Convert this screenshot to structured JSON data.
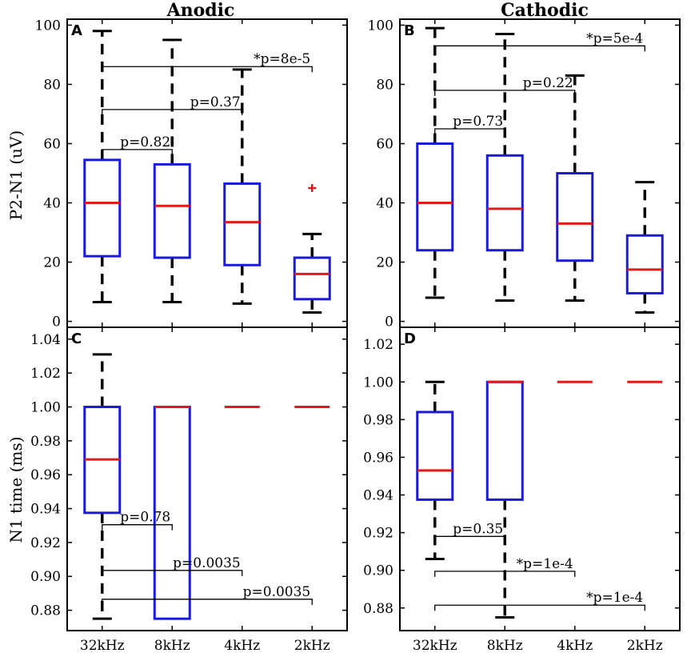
{
  "figure": {
    "col_titles": [
      "Anodic",
      "Cathodic"
    ],
    "row_ylabels": [
      "P2-N1 (uV)",
      "N1 time (ms)"
    ]
  },
  "chart_data": [
    {
      "panel": "A",
      "type": "box",
      "title": "Anodic",
      "ylabel": "P2-N1 (uV)",
      "categories": [
        "32kHz",
        "8kHz",
        "4kHz",
        "2kHz"
      ],
      "ylim": [
        -2,
        102
      ],
      "yticks": [
        0,
        20,
        40,
        60,
        80,
        100
      ],
      "ytick_labels": [
        "0",
        "20",
        "40",
        "60",
        "80",
        "100"
      ],
      "boxes": [
        {
          "lower_whisker": 6.5,
          "q1": 22,
          "median": 40,
          "q3": 54.5,
          "upper_whisker": 98,
          "outliers": []
        },
        {
          "lower_whisker": 6.5,
          "q1": 21.5,
          "median": 39,
          "q3": 53,
          "upper_whisker": 95,
          "outliers": []
        },
        {
          "lower_whisker": 6,
          "q1": 19,
          "median": 33.5,
          "q3": 46.5,
          "upper_whisker": 85,
          "outliers": []
        },
        {
          "lower_whisker": 3,
          "q1": 7.5,
          "median": 16,
          "q3": 21.5,
          "upper_whisker": 29.5,
          "outliers": [
            45
          ]
        }
      ],
      "comparisons": [
        {
          "from": 0,
          "to": 1,
          "y": 58,
          "label": "p=0.82"
        },
        {
          "from": 0,
          "to": 2,
          "y": 71.5,
          "label": "p=0.37"
        },
        {
          "from": 0,
          "to": 3,
          "y": 86,
          "label": "*p=8e-5"
        }
      ]
    },
    {
      "panel": "B",
      "type": "box",
      "title": "Cathodic",
      "ylabel": "",
      "categories": [
        "32kHz",
        "8kHz",
        "4kHz",
        "2kHz"
      ],
      "ylim": [
        -2,
        102
      ],
      "yticks": [
        0,
        20,
        40,
        60,
        80,
        100
      ],
      "ytick_labels": [
        "0",
        "20",
        "40",
        "60",
        "80",
        "100"
      ],
      "boxes": [
        {
          "lower_whisker": 8,
          "q1": 24,
          "median": 40,
          "q3": 60,
          "upper_whisker": 99,
          "outliers": []
        },
        {
          "lower_whisker": 7,
          "q1": 24,
          "median": 38,
          "q3": 56,
          "upper_whisker": 97,
          "outliers": []
        },
        {
          "lower_whisker": 7,
          "q1": 20.5,
          "median": 33,
          "q3": 50,
          "upper_whisker": 83,
          "outliers": []
        },
        {
          "lower_whisker": 3,
          "q1": 9.5,
          "median": 17.5,
          "q3": 29,
          "upper_whisker": 47,
          "outliers": []
        }
      ],
      "comparisons": [
        {
          "from": 0,
          "to": 1,
          "y": 65,
          "label": "p=0.73"
        },
        {
          "from": 0,
          "to": 2,
          "y": 78,
          "label": "p=0.22"
        },
        {
          "from": 0,
          "to": 3,
          "y": 93,
          "label": "*p=5e-4"
        }
      ]
    },
    {
      "panel": "C",
      "type": "box",
      "title": "",
      "ylabel": "N1 time (ms)",
      "categories": [
        "32kHz",
        "8kHz",
        "4kHz",
        "2kHz"
      ],
      "ylim": [
        0.868,
        1.047
      ],
      "yticks": [
        0.88,
        0.9,
        0.92,
        0.94,
        0.96,
        0.98,
        1.0,
        1.02,
        1.04
      ],
      "ytick_labels": [
        "0.88",
        "0.90",
        "0.92",
        "0.94",
        "0.96",
        "0.98",
        "1.00",
        "1.02",
        "1.04"
      ],
      "boxes": [
        {
          "lower_whisker": 0.875,
          "q1": 0.9375,
          "median": 0.969,
          "q3": 1.0,
          "upper_whisker": 1.031,
          "outliers": []
        },
        {
          "lower_whisker": 0.875,
          "q1": 0.875,
          "median": 1.0,
          "q3": 1.0,
          "upper_whisker": 1.0,
          "outliers": []
        },
        {
          "lower_whisker": 1.0,
          "q1": 1.0,
          "median": 1.0,
          "q3": 1.0,
          "upper_whisker": 1.0,
          "outliers": []
        },
        {
          "lower_whisker": 1.0,
          "q1": 1.0,
          "median": 1.0,
          "q3": 1.0,
          "upper_whisker": 1.0,
          "outliers": []
        }
      ],
      "comparisons": [
        {
          "from": 0,
          "to": 1,
          "y": 0.9305,
          "label": "p=0.78"
        },
        {
          "from": 0,
          "to": 2,
          "y": 0.9035,
          "label": "p=0.0035"
        },
        {
          "from": 0,
          "to": 3,
          "y": 0.8865,
          "label": "p=0.0035"
        }
      ]
    },
    {
      "panel": "D",
      "type": "box",
      "title": "",
      "ylabel": "",
      "categories": [
        "32kHz",
        "8kHz",
        "4kHz",
        "2kHz"
      ],
      "ylim": [
        0.868,
        1.029
      ],
      "yticks": [
        0.88,
        0.9,
        0.92,
        0.94,
        0.96,
        0.98,
        1.0,
        1.02
      ],
      "ytick_labels": [
        "0.88",
        "0.90",
        "0.92",
        "0.94",
        "0.96",
        "0.98",
        "1.00",
        "1.02"
      ],
      "boxes": [
        {
          "lower_whisker": 0.906,
          "q1": 0.9375,
          "median": 0.953,
          "q3": 0.984,
          "upper_whisker": 1.0,
          "outliers": []
        },
        {
          "lower_whisker": 0.875,
          "q1": 0.9375,
          "median": 1.0,
          "q3": 1.0,
          "upper_whisker": 1.0,
          "outliers": []
        },
        {
          "lower_whisker": 1.0,
          "q1": 1.0,
          "median": 1.0,
          "q3": 1.0,
          "upper_whisker": 1.0,
          "outliers": []
        },
        {
          "lower_whisker": 1.0,
          "q1": 1.0,
          "median": 1.0,
          "q3": 1.0,
          "upper_whisker": 1.0,
          "outliers": []
        }
      ],
      "comparisons": [
        {
          "from": 0,
          "to": 1,
          "y": 0.918,
          "label": "p=0.35"
        },
        {
          "from": 0,
          "to": 2,
          "y": 0.8995,
          "label": "*p=1e-4"
        },
        {
          "from": 0,
          "to": 3,
          "y": 0.8815,
          "label": "*p=1e-4"
        }
      ]
    }
  ],
  "colors": {
    "box": "#1a1adb",
    "median": "#e31a1c",
    "whisker": "#000000",
    "outlier": "#e31a1c"
  }
}
